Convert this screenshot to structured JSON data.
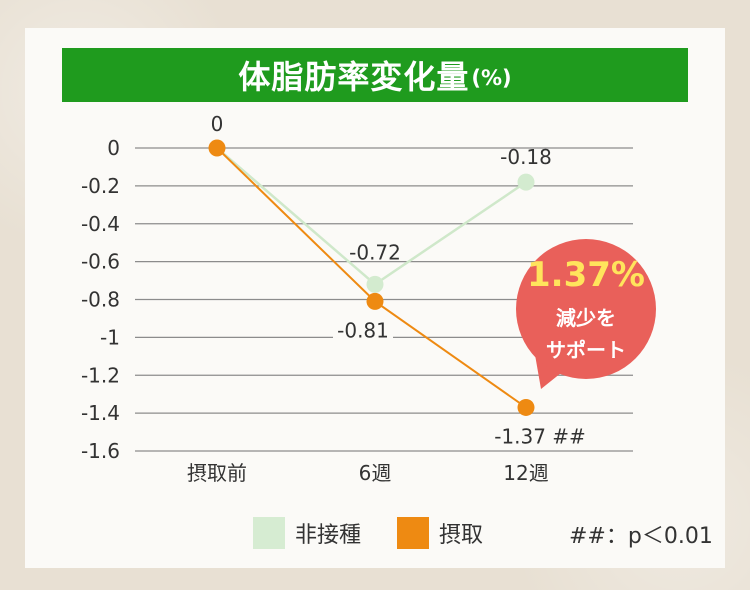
{
  "colors": {
    "title_bg": "#1f9b1e",
    "placebo": "#d6ecd2",
    "intake": "#ee8a12",
    "bubble": "#e9605a",
    "bubble_highlight": "#ffe45c"
  },
  "chart_data": {
    "type": "line",
    "title": "体脂肪率変化量",
    "title_unit": "(%)",
    "categories": [
      "摂取前",
      "6週",
      "12週"
    ],
    "ylim": [
      -1.6,
      0
    ],
    "yticks": [
      "0",
      "-0.2",
      "-0.4",
      "-0.6",
      "-0.8",
      "-1",
      "-1.2",
      "-1.4",
      "-1.6"
    ],
    "grid": true,
    "legend_position": "bottom",
    "series": [
      {
        "name": "非接種",
        "values": [
          0,
          -0.72,
          -0.18
        ],
        "labels": [
          "",
          "-0.72",
          "-0.18"
        ]
      },
      {
        "name": "摂取",
        "values": [
          0,
          -0.81,
          -1.37
        ],
        "labels": [
          "0",
          "-0.81",
          "-1.37 ##"
        ]
      }
    ],
    "annotation": {
      "highlight": "1.37%",
      "line1": "減少を",
      "line2": "サポート"
    },
    "note": "##：p＜0.01"
  }
}
